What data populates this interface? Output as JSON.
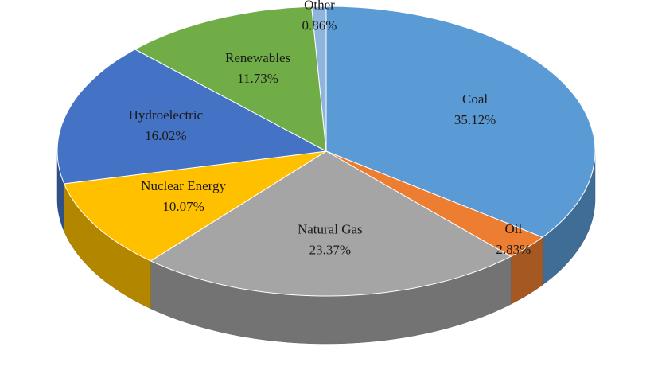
{
  "chart_data": {
    "type": "pie3d",
    "categories": [
      "Coal",
      "Oil",
      "Natural Gas",
      "Nuclear Energy",
      "Hydroelectric",
      "Renewables",
      "Other"
    ],
    "values": [
      35.12,
      2.83,
      23.37,
      10.07,
      16.02,
      11.73,
      0.86
    ],
    "value_labels": [
      "35.12%",
      "2.83%",
      "23.37%",
      "10.07%",
      "16.02%",
      "11.73%",
      "0.86%"
    ],
    "colors": [
      "#5b9bd5",
      "#ed7d31",
      "#a5a5a5",
      "#ffc000",
      "#4472c4",
      "#70ad47",
      "#8fb4de"
    ]
  }
}
